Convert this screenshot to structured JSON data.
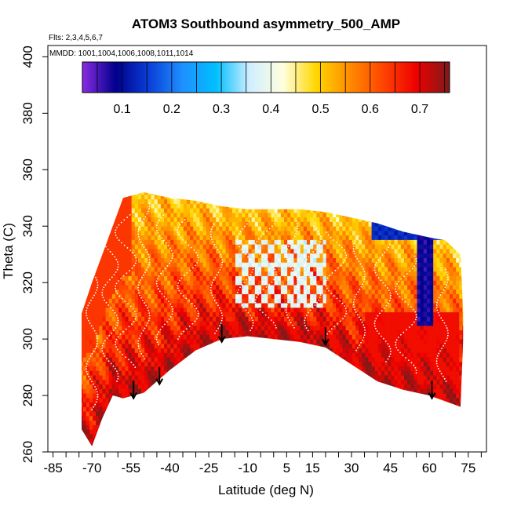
{
  "chart_data": {
    "type": "heatmap",
    "title": "ATOM3 Southbound asymmetry_500_AMP",
    "flights_label": "Flts: 2,3,4,5,6,7",
    "mmdd_label": "MMDD: 1001,1004,1006,1008,1011,1014",
    "xlabel": "Latitude (deg N)",
    "ylabel": "Theta (C)",
    "xlim": [
      -87,
      82
    ],
    "ylim": [
      260,
      404
    ],
    "x_major_ticks": [
      -85,
      -70,
      -55,
      -40,
      -25,
      -10,
      5,
      15,
      30,
      45,
      60,
      75
    ],
    "x_minor_step": 5,
    "y_ticks": [
      260,
      280,
      300,
      320,
      340,
      360,
      380,
      400
    ],
    "colorbar": {
      "range": [
        0.02,
        0.76
      ],
      "ticks": [
        "0.1",
        "0.2",
        "0.3",
        "0.4",
        "0.5",
        "0.6",
        "0.7"
      ],
      "tick_values": [
        0.1,
        0.2,
        0.3,
        0.4,
        0.5,
        0.6,
        0.7
      ],
      "colors": [
        "#8a2be2",
        "#00008b",
        "#0a3fd8",
        "#1e90ff",
        "#00bfff",
        "#cfeeff",
        "#ffffe0",
        "#ffd700",
        "#ff8c00",
        "#ff4500",
        "#ee0000",
        "#7e1a1a"
      ]
    },
    "data_region": {
      "upper_boundary": [
        [
          -74,
          309
        ],
        [
          -70,
          320
        ],
        [
          -66,
          330
        ],
        [
          -62,
          340
        ],
        [
          -58,
          350
        ],
        [
          -50,
          352
        ],
        [
          -40,
          350
        ],
        [
          -30,
          349
        ],
        [
          -20,
          347
        ],
        [
          -10,
          346
        ],
        [
          0,
          346
        ],
        [
          10,
          346
        ],
        [
          20,
          345
        ],
        [
          30,
          343
        ],
        [
          40,
          341
        ],
        [
          50,
          338
        ],
        [
          60,
          336
        ],
        [
          66,
          335
        ],
        [
          72,
          330
        ],
        [
          73,
          310
        ]
      ],
      "lower_boundary": [
        [
          73,
          299
        ],
        [
          72,
          276
        ],
        [
          60,
          280
        ],
        [
          50,
          282
        ],
        [
          40,
          285
        ],
        [
          30,
          291
        ],
        [
          20,
          297
        ],
        [
          10,
          299
        ],
        [
          0,
          300
        ],
        [
          -10,
          301
        ],
        [
          -20,
          300
        ],
        [
          -30,
          296
        ],
        [
          -40,
          289
        ],
        [
          -50,
          281
        ],
        [
          -58,
          279
        ],
        [
          -62,
          280
        ],
        [
          -66,
          272
        ],
        [
          -70,
          262
        ],
        [
          -74,
          268
        ]
      ]
    },
    "low_value_features": [
      {
        "label": "blue band",
        "x_range": [
          55,
          62
        ],
        "theta_range": [
          305,
          340
        ],
        "value": 0.05
      },
      {
        "label": "blue band top",
        "x_range": [
          38,
          68
        ],
        "theta_range": [
          336,
          343
        ],
        "value": 0.1
      },
      {
        "label": "light patches",
        "x_range": [
          -15,
          20
        ],
        "theta_range": [
          312,
          335
        ],
        "value": 0.35
      }
    ],
    "tropopause_arrows": [
      {
        "lat": -54,
        "theta": 279
      },
      {
        "lat": -44,
        "theta": 284
      },
      {
        "lat": -20,
        "theta": 299
      },
      {
        "lat": 20,
        "theta": 298
      },
      {
        "lat": 61,
        "theta": 279
      }
    ],
    "flight_paths": [
      {
        "lat": -70,
        "theta_min": 275,
        "theta_max": 338
      },
      {
        "lat": -63,
        "theta_min": 285,
        "theta_max": 335
      },
      {
        "lat": -57,
        "theta_min": 290,
        "theta_max": 345
      },
      {
        "lat": -50,
        "theta_min": 293,
        "theta_max": 348
      },
      {
        "lat": -42,
        "theta_min": 298,
        "theta_max": 344
      },
      {
        "lat": -33,
        "theta_min": 300,
        "theta_max": 343
      },
      {
        "lat": -22,
        "theta_min": 302,
        "theta_max": 341
      },
      {
        "lat": -11,
        "theta_min": 303,
        "theta_max": 342
      },
      {
        "lat": -3,
        "theta_min": 304,
        "theta_max": 341
      },
      {
        "lat": 7,
        "theta_min": 304,
        "theta_max": 342
      },
      {
        "lat": 15,
        "theta_min": 303,
        "theta_max": 340
      },
      {
        "lat": 24,
        "theta_min": 300,
        "theta_max": 338
      },
      {
        "lat": 33,
        "theta_min": 296,
        "theta_max": 337
      },
      {
        "lat": 42,
        "theta_min": 292,
        "theta_max": 334
      },
      {
        "lat": 51,
        "theta_min": 288,
        "theta_max": 330
      },
      {
        "lat": 65,
        "theta_min": 285,
        "theta_max": 325
      }
    ]
  }
}
